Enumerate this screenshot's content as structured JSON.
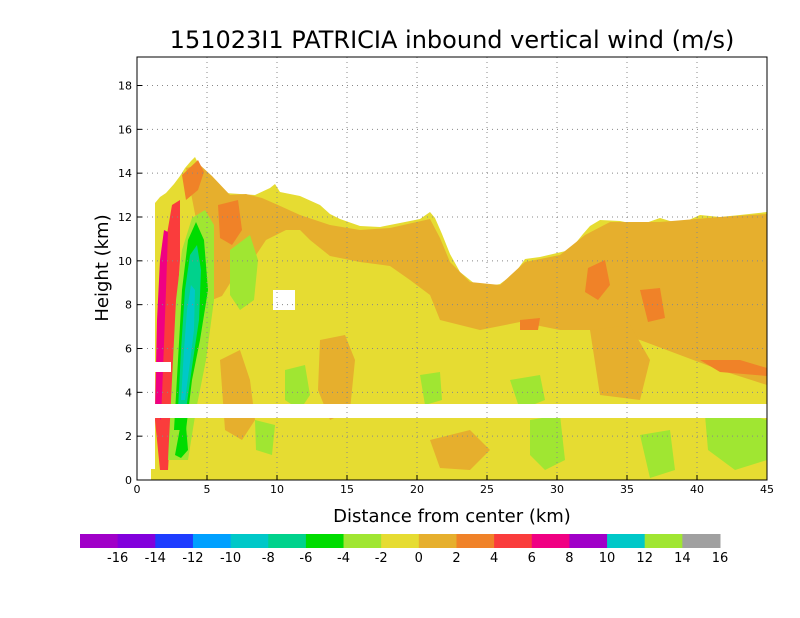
{
  "chart_data": {
    "type": "heatmap",
    "title": "151023I1 PATRICIA inbound vertical wind (m/s)",
    "xlabel": "Distance from center (km)",
    "ylabel": "Height (km)",
    "xlim": [
      0,
      45
    ],
    "ylim": [
      0,
      19.3
    ],
    "x_ticks": [
      "0",
      "5",
      "10",
      "15",
      "20",
      "25",
      "30",
      "35",
      "40",
      "45"
    ],
    "y_ticks": [
      "0",
      "2",
      "4",
      "6",
      "8",
      "10",
      "12",
      "14",
      "16",
      "18"
    ],
    "grid": true,
    "colorbar": {
      "labels": [
        "-16",
        "-14",
        "-12",
        "-10",
        "-8",
        "-6",
        "-4",
        "-2",
        "0",
        "2",
        "4",
        "6",
        "8",
        "10",
        "12",
        "14",
        "16"
      ],
      "colors": [
        "#a000c8",
        "#8200dc",
        "#1e3cff",
        "#00a0ff",
        "#00c8c8",
        "#00d28c",
        "#00dc00",
        "#a0e632",
        "#e6dc32",
        "#e6af2d",
        "#f08228",
        "#fa3c3c",
        "#f00082",
        "#a000c8",
        "#00c8c8",
        "#a0e632",
        "#a0a0a0"
      ]
    },
    "data_top_height_km": [
      {
        "x": 1.0,
        "h": 0.5
      },
      {
        "x": 1.5,
        "h": 12.5
      },
      {
        "x": 2.0,
        "h": 13.0
      },
      {
        "x": 2.5,
        "h": 14.0
      },
      {
        "x": 3.0,
        "h": 14.3
      },
      {
        "x": 4.0,
        "h": 14.8
      },
      {
        "x": 4.5,
        "h": 13.5
      },
      {
        "x": 5.0,
        "h": 12.8
      },
      {
        "x": 7.0,
        "h": 12.6
      },
      {
        "x": 9.0,
        "h": 12.8
      },
      {
        "x": 10.0,
        "h": 13.0
      },
      {
        "x": 12.0,
        "h": 12.5
      },
      {
        "x": 14.0,
        "h": 12.0
      },
      {
        "x": 16.0,
        "h": 11.7
      },
      {
        "x": 18.0,
        "h": 11.5
      },
      {
        "x": 20.0,
        "h": 11.7
      },
      {
        "x": 22.0,
        "h": 12.3
      },
      {
        "x": 23.5,
        "h": 10.2
      },
      {
        "x": 25.0,
        "h": 8.8
      },
      {
        "x": 27.0,
        "h": 9.2
      },
      {
        "x": 28.0,
        "h": 10.2
      },
      {
        "x": 31.0,
        "h": 10.8
      },
      {
        "x": 32.0,
        "h": 11.8
      },
      {
        "x": 34.0,
        "h": 12.0
      },
      {
        "x": 36.0,
        "h": 11.8
      },
      {
        "x": 38.0,
        "h": 12.2
      },
      {
        "x": 40.0,
        "h": 11.9
      },
      {
        "x": 42.0,
        "h": 12.0
      },
      {
        "x": 45.0,
        "h": 12.2
      }
    ],
    "missing_band_km": [
      2.8,
      3.3
    ],
    "updraft_core": {
      "x_center_km": 3.8,
      "height_range_km": [
        1.0,
        12.2
      ],
      "peak_value_ms": -6
    }
  }
}
